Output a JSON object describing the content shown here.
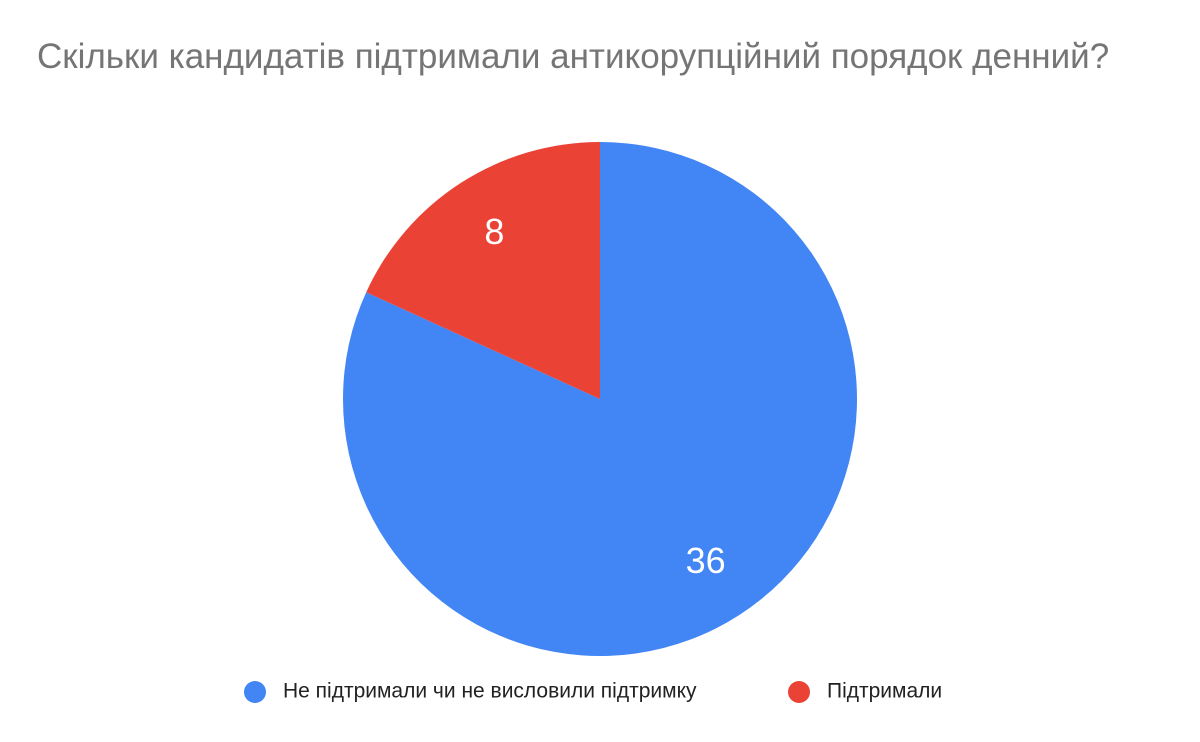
{
  "chart_data": {
    "type": "pie",
    "title": "Скільки кандидатів підтримали антикорупційний порядок денний?",
    "categories": [
      "Не підтримали чи не висловили підтримку",
      "Підтримали"
    ],
    "values": [
      36,
      8
    ],
    "colors": [
      "#4285f4",
      "#ea4335"
    ]
  }
}
